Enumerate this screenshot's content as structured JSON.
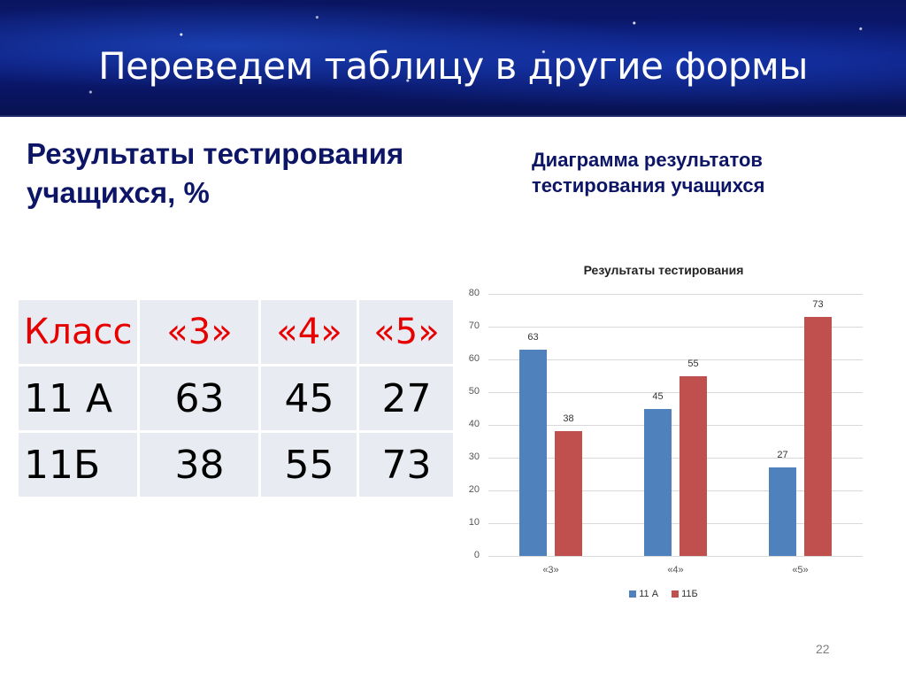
{
  "slide": {
    "title": "Переведем таблицу в другие формы",
    "left_heading": "Результаты тестирования учащихся, %",
    "right_heading": "Диаграмма результатов тестирования учащихся",
    "slide_number": "22"
  },
  "table": {
    "header": [
      "Класс",
      "«3»",
      "«4»",
      "«5»"
    ],
    "rows": [
      [
        "11 А",
        "63",
        "45",
        "27"
      ],
      [
        "11Б",
        "38",
        "55",
        "73"
      ]
    ]
  },
  "colors": {
    "series_11A": "#4f81bd",
    "series_11B": "#c0504d",
    "heading": "#0d1566",
    "table_header": "#e60000"
  },
  "chart_data": {
    "type": "bar",
    "title": "Результаты тестирования",
    "categories": [
      "«3»",
      "«4»",
      "«5»"
    ],
    "series": [
      {
        "name": "11 А",
        "values": [
          63,
          45,
          27
        ]
      },
      {
        "name": "11Б",
        "values": [
          38,
          55,
          73
        ]
      }
    ],
    "xlabel": "",
    "ylabel": "",
    "ylim": [
      0,
      80
    ],
    "yticks": [
      "0",
      "10",
      "20",
      "30",
      "40",
      "50",
      "60",
      "70",
      "80"
    ],
    "grid": true,
    "legend_position": "bottom",
    "data_labels": true
  }
}
